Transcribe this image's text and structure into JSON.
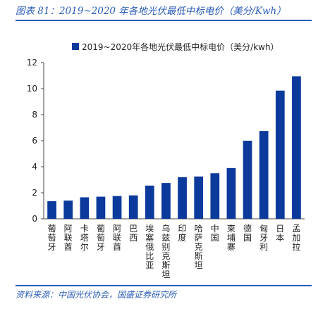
{
  "figure": {
    "title": "图表 81：2019~2020 年各地光伏最低中标电价（美分/Kwh）",
    "source": "资料来源：中国光伏协会，国盛证券研究所"
  },
  "chart_data": {
    "type": "bar",
    "categories": [
      "葡萄牙",
      "阿联酋",
      "卡塔尔",
      "葡萄牙",
      "阿联酋",
      "巴西",
      "埃塞俄比亚",
      "乌兹别克斯坦",
      "印度",
      "哈萨克斯坦",
      "中国",
      "柬埔寨",
      "德国",
      "匈牙利",
      "日本",
      "孟加拉"
    ],
    "series": [
      {
        "name": "2019~2020年各地光伏最低中标电价（美分/kwh）",
        "values": [
          1.35,
          1.4,
          1.65,
          1.7,
          1.75,
          1.8,
          2.55,
          2.75,
          3.2,
          3.25,
          3.5,
          3.9,
          6.0,
          6.75,
          9.85,
          10.95
        ]
      }
    ],
    "ylim": [
      0,
      12
    ],
    "yticks": [
      0,
      2,
      4,
      6,
      8,
      10,
      12
    ],
    "grid": false,
    "legend_position": "top",
    "bar_color": "#0b3a9c"
  }
}
